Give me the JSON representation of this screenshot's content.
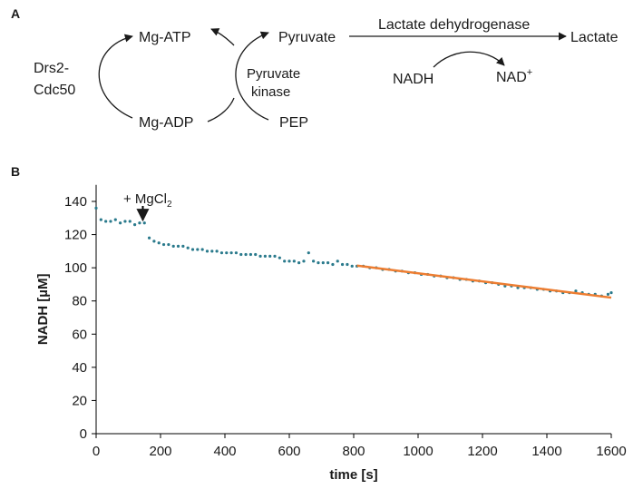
{
  "panel_a": {
    "letter": "A",
    "enzyme_line1": "Drs2-",
    "enzyme_line2": "Cdc50",
    "mg_atp": "Mg-ATP",
    "mg_adp": "Mg-ADP",
    "pk_line1": "Pyruvate",
    "pk_line2": "kinase",
    "pyruvate": "Pyruvate",
    "pep": "PEP",
    "ldh": "Lactate dehydrogenase",
    "lactate": "Lactate",
    "nadh": "NADH",
    "nad_base": "NAD",
    "nad_sup": "+"
  },
  "panel_b": {
    "letter": "B",
    "annotation_prefix": "+ MgCl",
    "annotation_sub": "2"
  },
  "colors": {
    "points": "#2a7a8c",
    "fit": "#ed7d31",
    "axis": "#000000",
    "arrows": "#1a1a1a"
  },
  "chart_data": {
    "type": "scatter",
    "xlabel": "time [s]",
    "ylabel": "NADH [µM]",
    "xlim": [
      0,
      1600
    ],
    "ylim": [
      0,
      150
    ],
    "xticks": [
      0,
      200,
      400,
      600,
      800,
      1000,
      1200,
      1400,
      1600
    ],
    "yticks": [
      0,
      20,
      40,
      60,
      80,
      100,
      120,
      140
    ],
    "grid": false,
    "annotation": {
      "x": 145,
      "y": 127
    },
    "points": [
      [
        0,
        136
      ],
      [
        15,
        129
      ],
      [
        30,
        128
      ],
      [
        45,
        128
      ],
      [
        60,
        129
      ],
      [
        75,
        127
      ],
      [
        90,
        128
      ],
      [
        105,
        128
      ],
      [
        120,
        126
      ],
      [
        135,
        127
      ],
      [
        150,
        127
      ],
      [
        165,
        118
      ],
      [
        180,
        116
      ],
      [
        195,
        115
      ],
      [
        210,
        114
      ],
      [
        225,
        114
      ],
      [
        240,
        113
      ],
      [
        255,
        113
      ],
      [
        270,
        113
      ],
      [
        285,
        112
      ],
      [
        300,
        111
      ],
      [
        315,
        111
      ],
      [
        330,
        111
      ],
      [
        345,
        110
      ],
      [
        360,
        110
      ],
      [
        375,
        110
      ],
      [
        390,
        109
      ],
      [
        405,
        109
      ],
      [
        420,
        109
      ],
      [
        435,
        109
      ],
      [
        450,
        108
      ],
      [
        465,
        108
      ],
      [
        480,
        108
      ],
      [
        495,
        108
      ],
      [
        510,
        107
      ],
      [
        525,
        107
      ],
      [
        540,
        107
      ],
      [
        555,
        107
      ],
      [
        570,
        106
      ],
      [
        585,
        104
      ],
      [
        600,
        104
      ],
      [
        615,
        104
      ],
      [
        630,
        103
      ],
      [
        645,
        104
      ],
      [
        660,
        109
      ],
      [
        675,
        104
      ],
      [
        690,
        103
      ],
      [
        705,
        103
      ],
      [
        720,
        103
      ],
      [
        735,
        102
      ],
      [
        750,
        104
      ],
      [
        765,
        102
      ],
      [
        780,
        102
      ],
      [
        795,
        101
      ],
      [
        810,
        101
      ],
      [
        830,
        101
      ],
      [
        850,
        100
      ],
      [
        870,
        100
      ],
      [
        890,
        99
      ],
      [
        910,
        99
      ],
      [
        930,
        98
      ],
      [
        950,
        98
      ],
      [
        970,
        97
      ],
      [
        990,
        97
      ],
      [
        1010,
        96
      ],
      [
        1030,
        96
      ],
      [
        1050,
        95
      ],
      [
        1070,
        95
      ],
      [
        1090,
        94
      ],
      [
        1110,
        94
      ],
      [
        1130,
        93
      ],
      [
        1150,
        93
      ],
      [
        1170,
        92
      ],
      [
        1190,
        92
      ],
      [
        1210,
        91
      ],
      [
        1230,
        91
      ],
      [
        1250,
        90
      ],
      [
        1270,
        89
      ],
      [
        1290,
        89
      ],
      [
        1310,
        88
      ],
      [
        1330,
        88
      ],
      [
        1350,
        88
      ],
      [
        1370,
        87
      ],
      [
        1390,
        87
      ],
      [
        1410,
        86
      ],
      [
        1430,
        86
      ],
      [
        1450,
        85
      ],
      [
        1470,
        85
      ],
      [
        1490,
        86
      ],
      [
        1510,
        85
      ],
      [
        1530,
        84
      ],
      [
        1550,
        84
      ],
      [
        1570,
        83
      ],
      [
        1590,
        84
      ],
      [
        1600,
        85
      ]
    ],
    "fit": {
      "x": [
        810,
        1600
      ],
      "y": [
        101.3,
        82.0
      ]
    }
  }
}
